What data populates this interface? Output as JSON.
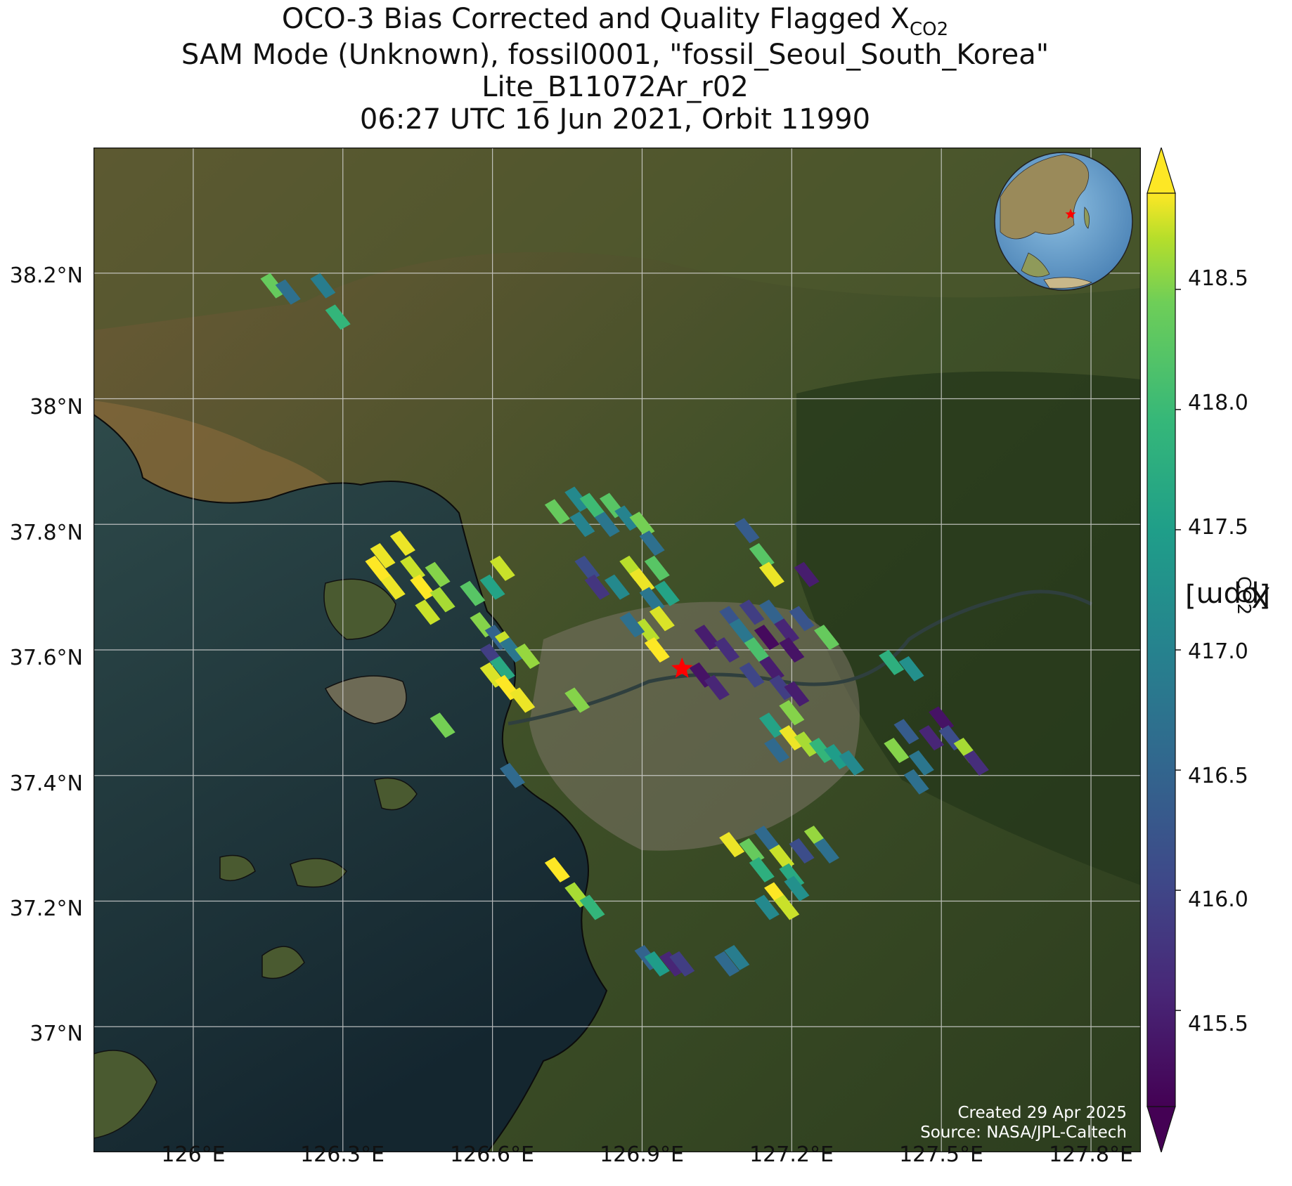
{
  "title": {
    "line1_prefix": "OCO-3 Bias Corrected and Quality Flagged X",
    "line1_sub": "CO2",
    "line2": "SAM Mode (Unknown), fossil0001, \"fossil_Seoul_South_Korea\"",
    "line3": "Lite_B11072Ar_r02",
    "line4": "06:27 UTC 16 Jun 2021, Orbit 11990"
  },
  "credits": {
    "created": "Created 29 Apr 2025",
    "source": "Source: NASA/JPL-Caltech"
  },
  "colorbar": {
    "label_prefix": "X",
    "label_sub": "CO2",
    "label_suffix": " [ppm]",
    "ticks": [
      "415.5",
      "416.0",
      "416.5",
      "417.0",
      "417.5",
      "418.0",
      "418.5"
    ],
    "range": [
      415.1,
      418.9
    ],
    "colormap": "viridis",
    "extend": "both"
  },
  "chart_data": {
    "type": "map",
    "lon_range": [
      125.8,
      127.9
    ],
    "lat_range": [
      36.8,
      38.4
    ],
    "x_ticks": [
      "126°E",
      "126.3°E",
      "126.6°E",
      "126.9°E",
      "127.2°E",
      "127.5°E",
      "127.8°E"
    ],
    "y_ticks": [
      "37°N",
      "37.2°N",
      "37.4°N",
      "37.6°N",
      "37.8°N",
      "38°N",
      "38.2°N"
    ],
    "grid": true,
    "target": {
      "name": "fossil_Seoul_South_Korea",
      "lon": 126.98,
      "lat": 37.57,
      "marker": "red-star"
    },
    "inset_globe": {
      "location": "top-right",
      "marker": "red-star"
    },
    "soundings": [
      {
        "lon": 126.16,
        "lat": 38.18,
        "v": 418.0
      },
      {
        "lon": 126.19,
        "lat": 38.17,
        "v": 416.5
      },
      {
        "lon": 126.26,
        "lat": 38.18,
        "v": 416.7
      },
      {
        "lon": 126.29,
        "lat": 38.13,
        "v": 417.6
      },
      {
        "lon": 126.38,
        "lat": 37.75,
        "v": 418.8
      },
      {
        "lon": 126.42,
        "lat": 37.77,
        "v": 418.8
      },
      {
        "lon": 126.44,
        "lat": 37.73,
        "v": 418.6
      },
      {
        "lon": 126.4,
        "lat": 37.7,
        "v": 418.8
      },
      {
        "lon": 126.46,
        "lat": 37.7,
        "v": 418.9
      },
      {
        "lon": 126.49,
        "lat": 37.72,
        "v": 418.2
      },
      {
        "lon": 126.47,
        "lat": 37.66,
        "v": 418.6
      },
      {
        "lon": 126.5,
        "lat": 37.68,
        "v": 418.4
      },
      {
        "lon": 126.37,
        "lat": 37.73,
        "v": 418.9
      },
      {
        "lon": 126.5,
        "lat": 37.48,
        "v": 418.1
      },
      {
        "lon": 126.56,
        "lat": 37.69,
        "v": 417.9
      },
      {
        "lon": 126.6,
        "lat": 37.7,
        "v": 417.3
      },
      {
        "lon": 126.62,
        "lat": 37.73,
        "v": 418.6
      },
      {
        "lon": 126.58,
        "lat": 37.64,
        "v": 418.2
      },
      {
        "lon": 126.61,
        "lat": 37.62,
        "v": 416.3
      },
      {
        "lon": 126.63,
        "lat": 37.61,
        "v": 418.6
      },
      {
        "lon": 126.6,
        "lat": 37.59,
        "v": 415.8
      },
      {
        "lon": 126.64,
        "lat": 37.6,
        "v": 416.6
      },
      {
        "lon": 126.67,
        "lat": 37.59,
        "v": 418.3
      },
      {
        "lon": 126.6,
        "lat": 37.56,
        "v": 418.7
      },
      {
        "lon": 126.62,
        "lat": 37.57,
        "v": 417.4
      },
      {
        "lon": 126.63,
        "lat": 37.54,
        "v": 418.9
      },
      {
        "lon": 126.66,
        "lat": 37.52,
        "v": 418.8
      },
      {
        "lon": 126.64,
        "lat": 37.4,
        "v": 416.4
      },
      {
        "lon": 126.73,
        "lat": 37.82,
        "v": 418.0
      },
      {
        "lon": 126.77,
        "lat": 37.84,
        "v": 416.9
      },
      {
        "lon": 126.8,
        "lat": 37.83,
        "v": 417.7
      },
      {
        "lon": 126.78,
        "lat": 37.8,
        "v": 416.8
      },
      {
        "lon": 126.83,
        "lat": 37.8,
        "v": 416.6
      },
      {
        "lon": 126.84,
        "lat": 37.83,
        "v": 417.9
      },
      {
        "lon": 126.87,
        "lat": 37.81,
        "v": 416.8
      },
      {
        "lon": 126.9,
        "lat": 37.8,
        "v": 418.1
      },
      {
        "lon": 126.92,
        "lat": 37.77,
        "v": 416.5
      },
      {
        "lon": 126.79,
        "lat": 37.73,
        "v": 416.0
      },
      {
        "lon": 126.81,
        "lat": 37.7,
        "v": 415.7
      },
      {
        "lon": 126.85,
        "lat": 37.7,
        "v": 416.9
      },
      {
        "lon": 126.88,
        "lat": 37.73,
        "v": 418.5
      },
      {
        "lon": 126.9,
        "lat": 37.71,
        "v": 418.8
      },
      {
        "lon": 126.93,
        "lat": 37.73,
        "v": 417.9
      },
      {
        "lon": 126.95,
        "lat": 37.69,
        "v": 417.3
      },
      {
        "lon": 126.92,
        "lat": 37.68,
        "v": 416.6
      },
      {
        "lon": 126.94,
        "lat": 37.65,
        "v": 418.7
      },
      {
        "lon": 126.91,
        "lat": 37.63,
        "v": 418.5
      },
      {
        "lon": 126.88,
        "lat": 37.64,
        "v": 416.5
      },
      {
        "lon": 126.93,
        "lat": 37.6,
        "v": 418.9
      },
      {
        "lon": 126.77,
        "lat": 37.52,
        "v": 418.2
      },
      {
        "lon": 126.73,
        "lat": 37.25,
        "v": 418.9
      },
      {
        "lon": 126.77,
        "lat": 37.21,
        "v": 418.4
      },
      {
        "lon": 126.8,
        "lat": 37.19,
        "v": 417.6
      },
      {
        "lon": 126.91,
        "lat": 37.11,
        "v": 416.3
      },
      {
        "lon": 126.93,
        "lat": 37.1,
        "v": 417.2
      },
      {
        "lon": 126.96,
        "lat": 37.1,
        "v": 415.5
      },
      {
        "lon": 126.98,
        "lat": 37.1,
        "v": 415.8
      },
      {
        "lon": 127.07,
        "lat": 37.1,
        "v": 416.4
      },
      {
        "lon": 127.09,
        "lat": 37.11,
        "v": 416.7
      },
      {
        "lon": 127.11,
        "lat": 37.79,
        "v": 416.2
      },
      {
        "lon": 127.14,
        "lat": 37.75,
        "v": 417.9
      },
      {
        "lon": 127.16,
        "lat": 37.72,
        "v": 418.8
      },
      {
        "lon": 127.02,
        "lat": 37.56,
        "v": 415.3
      },
      {
        "lon": 127.05,
        "lat": 37.54,
        "v": 415.5
      },
      {
        "lon": 127.03,
        "lat": 37.62,
        "v": 415.4
      },
      {
        "lon": 127.07,
        "lat": 37.6,
        "v": 415.6
      },
      {
        "lon": 127.08,
        "lat": 37.65,
        "v": 416.1
      },
      {
        "lon": 127.1,
        "lat": 37.63,
        "v": 416.6
      },
      {
        "lon": 127.12,
        "lat": 37.66,
        "v": 415.8
      },
      {
        "lon": 127.13,
        "lat": 37.6,
        "v": 417.8
      },
      {
        "lon": 127.15,
        "lat": 37.62,
        "v": 415.2
      },
      {
        "lon": 127.16,
        "lat": 37.66,
        "v": 416.3
      },
      {
        "lon": 127.19,
        "lat": 37.63,
        "v": 415.5
      },
      {
        "lon": 127.2,
        "lat": 37.6,
        "v": 415.3
      },
      {
        "lon": 127.22,
        "lat": 37.65,
        "v": 416.1
      },
      {
        "lon": 127.23,
        "lat": 37.72,
        "v": 415.4
      },
      {
        "lon": 127.12,
        "lat": 37.56,
        "v": 415.9
      },
      {
        "lon": 127.16,
        "lat": 37.57,
        "v": 415.4
      },
      {
        "lon": 127.18,
        "lat": 37.54,
        "v": 415.8
      },
      {
        "lon": 127.21,
        "lat": 37.53,
        "v": 415.4
      },
      {
        "lon": 127.2,
        "lat": 37.5,
        "v": 418.2
      },
      {
        "lon": 127.16,
        "lat": 37.48,
        "v": 417.3
      },
      {
        "lon": 127.17,
        "lat": 37.44,
        "v": 416.4
      },
      {
        "lon": 127.2,
        "lat": 37.46,
        "v": 418.8
      },
      {
        "lon": 127.23,
        "lat": 37.45,
        "v": 418.4
      },
      {
        "lon": 127.26,
        "lat": 37.44,
        "v": 417.6
      },
      {
        "lon": 127.29,
        "lat": 37.43,
        "v": 417.2
      },
      {
        "lon": 127.32,
        "lat": 37.42,
        "v": 416.9
      },
      {
        "lon": 127.27,
        "lat": 37.62,
        "v": 418.0
      },
      {
        "lon": 127.4,
        "lat": 37.58,
        "v": 417.5
      },
      {
        "lon": 127.44,
        "lat": 37.57,
        "v": 417.0
      },
      {
        "lon": 127.43,
        "lat": 37.47,
        "v": 416.2
      },
      {
        "lon": 127.41,
        "lat": 37.44,
        "v": 418.2
      },
      {
        "lon": 127.46,
        "lat": 37.42,
        "v": 416.6
      },
      {
        "lon": 127.48,
        "lat": 37.46,
        "v": 415.5
      },
      {
        "lon": 127.5,
        "lat": 37.49,
        "v": 415.3
      },
      {
        "lon": 127.52,
        "lat": 37.46,
        "v": 416.0
      },
      {
        "lon": 127.55,
        "lat": 37.44,
        "v": 418.4
      },
      {
        "lon": 127.57,
        "lat": 37.42,
        "v": 415.6
      },
      {
        "lon": 127.45,
        "lat": 37.39,
        "v": 416.5
      },
      {
        "lon": 127.08,
        "lat": 37.29,
        "v": 418.8
      },
      {
        "lon": 127.12,
        "lat": 37.28,
        "v": 418.0
      },
      {
        "lon": 127.15,
        "lat": 37.3,
        "v": 416.4
      },
      {
        "lon": 127.14,
        "lat": 37.25,
        "v": 417.5
      },
      {
        "lon": 127.18,
        "lat": 37.27,
        "v": 418.6
      },
      {
        "lon": 127.2,
        "lat": 37.24,
        "v": 417.4
      },
      {
        "lon": 127.22,
        "lat": 37.28,
        "v": 416.0
      },
      {
        "lon": 127.25,
        "lat": 37.3,
        "v": 418.3
      },
      {
        "lon": 127.27,
        "lat": 37.28,
        "v": 416.5
      },
      {
        "lon": 127.17,
        "lat": 37.21,
        "v": 418.9
      },
      {
        "lon": 127.19,
        "lat": 37.19,
        "v": 418.6
      },
      {
        "lon": 127.15,
        "lat": 37.19,
        "v": 416.9
      },
      {
        "lon": 127.21,
        "lat": 37.22,
        "v": 417.0
      }
    ]
  }
}
